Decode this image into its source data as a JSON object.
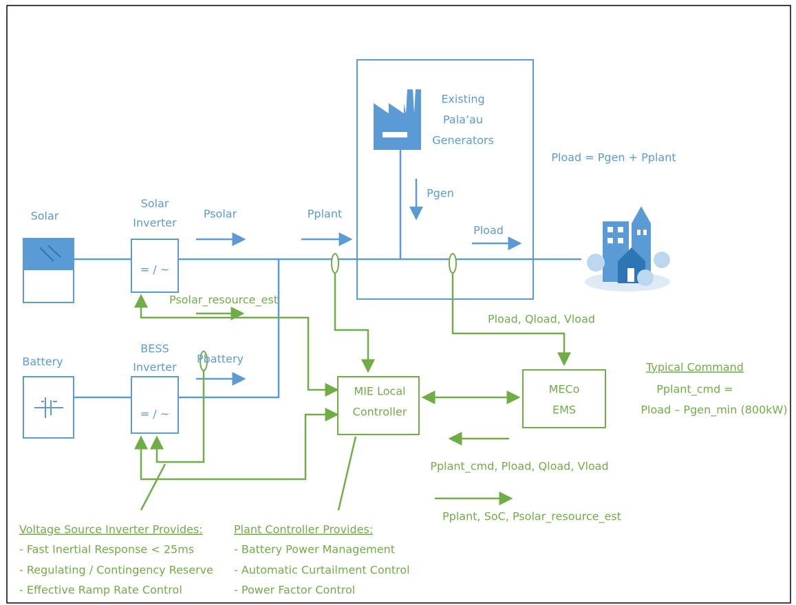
{
  "solar": {
    "label": "Solar",
    "inverter": [
      "Solar",
      "Inverter"
    ],
    "symbol": "= / ~"
  },
  "battery": {
    "label": "Battery",
    "inverter": [
      "BESS",
      "Inverter"
    ],
    "symbol": "= / ~"
  },
  "generators": [
    "Existing",
    "Pala’au",
    "Generators"
  ],
  "equation": "Pload = Pgen + Pplant",
  "flows": {
    "psolar": "Psolar",
    "pplant": "Pplant",
    "pgen": "Pgen",
    "pload": "Pload",
    "pbattery": "Pbattery",
    "psolar_resource_est": "Psolar_resource_est",
    "measurements": "Pload, Qload, Vload",
    "commands": "Pplant_cmd, Pload, Qload, Vload",
    "feedback": "Pplant, SoC, Psolar_resource_est"
  },
  "controller": [
    "MIE Local",
    "Controller"
  ],
  "ems": [
    "MECo",
    "EMS"
  ],
  "typical_command": {
    "title": "Typical Command",
    "lines": [
      "Pplant_cmd =",
      "Pload – Pgen_min (800kW)"
    ]
  },
  "inverter_provides": {
    "title": "Voltage Source Inverter Provides:",
    "items": [
      "- Fast Inertial Response < 25ms",
      "- Regulating / Contingency Reserve",
      "- Effective Ramp Rate Control"
    ]
  },
  "plant_provides": {
    "title": "Plant Controller Provides:",
    "items": [
      "- Battery Power Management",
      "- Automatic Curtailment Control",
      "- Power Factor Control"
    ]
  }
}
